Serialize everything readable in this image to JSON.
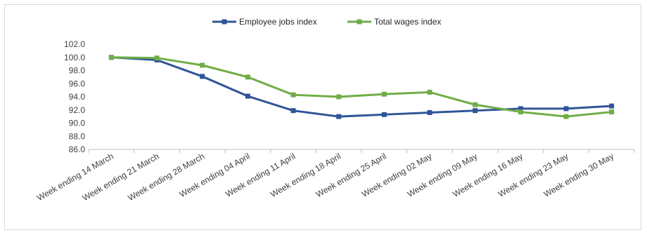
{
  "chart_data": {
    "type": "line",
    "categories": [
      "Week ending 14 March",
      "Week ending 21 March",
      "Week ending 28 March",
      "Week ending 04 April",
      "Week ending 11 April",
      "Week ending 18 April",
      "Week ending 25 April",
      "Week ending 02 May",
      "Week ending 09 May",
      "Week ending 16 May",
      "Week ending 23 May",
      "Week ending 30 May"
    ],
    "series": [
      {
        "name": "Employee jobs index",
        "color": "#2f5597",
        "values": [
          100.0,
          99.6,
          97.1,
          94.1,
          91.9,
          91.0,
          91.3,
          91.6,
          91.9,
          92.2,
          92.2,
          92.6
        ]
      },
      {
        "name": "Total wages index",
        "color": "#70ad47",
        "values": [
          100.0,
          99.9,
          98.8,
          97.0,
          94.3,
          94.0,
          94.4,
          94.7,
          92.8,
          91.7,
          91.0,
          91.7
        ]
      }
    ],
    "yticks": [
      "86.0",
      "88.0",
      "90.0",
      "92.0",
      "94.0",
      "96.0",
      "98.0",
      "100.0",
      "102.0"
    ],
    "ylim": [
      86,
      102
    ],
    "title": "",
    "xlabel": "",
    "ylabel": "",
    "legend_position": "top-center",
    "grid": false
  }
}
